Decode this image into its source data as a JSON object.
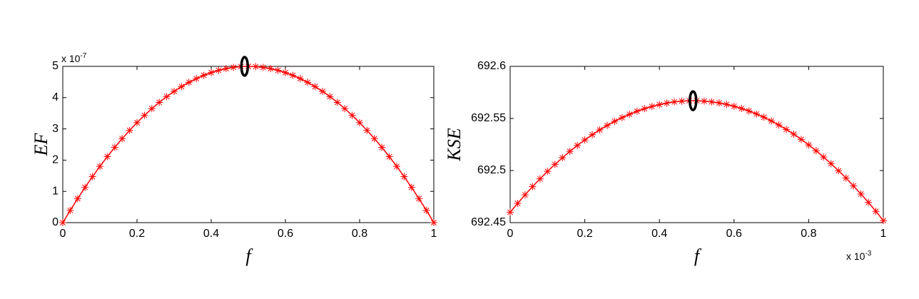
{
  "chart_data": [
    {
      "type": "line",
      "marker": "*",
      "color": "#ff0000",
      "xlabel": "f",
      "ylabel": "EF",
      "y_multiplier": {
        "base": "x 10",
        "exponent": "-7"
      },
      "xlim": [
        0,
        1
      ],
      "ylim": [
        0,
        5
      ],
      "xticks": [
        0,
        0.2,
        0.4,
        0.6,
        0.8,
        1
      ],
      "yticks": [
        0,
        1,
        2,
        3,
        4,
        5
      ],
      "x": [
        0,
        0.02,
        0.04,
        0.06,
        0.08,
        0.1,
        0.12,
        0.14,
        0.16,
        0.18,
        0.2,
        0.22,
        0.24,
        0.26,
        0.28,
        0.3,
        0.32,
        0.34,
        0.36,
        0.38,
        0.4,
        0.42,
        0.44,
        0.46,
        0.48,
        0.5,
        0.52,
        0.54,
        0.56,
        0.58,
        0.6,
        0.62,
        0.64,
        0.66,
        0.68,
        0.7,
        0.72,
        0.74,
        0.76,
        0.78,
        0.8,
        0.82,
        0.84,
        0.86,
        0.88,
        0.9,
        0.92,
        0.94,
        0.96,
        0.98,
        1
      ],
      "series": [
        {
          "name": "EF",
          "color": "#ff0000",
          "values": [
            0,
            0.392,
            0.768,
            1.128,
            1.472,
            1.8,
            2.112,
            2.408,
            2.688,
            2.952,
            3.2,
            3.432,
            3.648,
            3.848,
            4.032,
            4.2,
            4.352,
            4.488,
            4.608,
            4.712,
            4.8,
            4.872,
            4.928,
            4.968,
            4.992,
            5,
            4.992,
            4.968,
            4.928,
            4.872,
            4.8,
            4.712,
            4.608,
            4.488,
            4.352,
            4.2,
            4.032,
            3.848,
            3.648,
            3.432,
            3.2,
            2.952,
            2.688,
            2.408,
            2.112,
            1.8,
            1.472,
            1.128,
            0.768,
            0.392,
            0
          ]
        }
      ],
      "highlight": {
        "x": 0.49,
        "y": 5
      }
    },
    {
      "type": "line",
      "marker": "*",
      "color": "#ff0000",
      "xlabel": "f",
      "ylabel": "KSE",
      "x_multiplier": {
        "base": "x 10",
        "exponent": "-3"
      },
      "xlim": [
        0,
        1
      ],
      "ylim": [
        692.45,
        692.6
      ],
      "xticks": [
        0,
        0.2,
        0.4,
        0.6,
        0.8,
        1
      ],
      "yticks": [
        692.45,
        692.5,
        692.55,
        692.6
      ],
      "x": [
        0,
        0.02,
        0.04,
        0.06,
        0.08,
        0.1,
        0.12,
        0.14,
        0.16,
        0.18,
        0.2,
        0.22,
        0.24,
        0.26,
        0.28,
        0.3,
        0.32,
        0.34,
        0.36,
        0.38,
        0.4,
        0.42,
        0.44,
        0.46,
        0.48,
        0.5,
        0.52,
        0.54,
        0.56,
        0.58,
        0.6,
        0.62,
        0.64,
        0.66,
        0.68,
        0.7,
        0.72,
        0.74,
        0.76,
        0.78,
        0.8,
        0.82,
        0.84,
        0.86,
        0.88,
        0.9,
        0.92,
        0.94,
        0.96,
        0.98,
        1
      ],
      "series": [
        {
          "name": "KSE",
          "color": "#ff0000",
          "values": [
            692.46,
            692.4685,
            692.4767,
            692.4846,
            692.492,
            692.4992,
            692.5059,
            692.5123,
            692.5184,
            692.5241,
            692.5294,
            692.5344,
            692.539,
            692.5433,
            692.5473,
            692.5508,
            692.554,
            692.5569,
            692.5594,
            692.5615,
            692.5633,
            692.5648,
            692.5659,
            692.5666,
            692.567,
            692.567,
            692.5666,
            692.5659,
            692.5649,
            692.5635,
            692.5617,
            692.5596,
            692.5572,
            692.5543,
            692.5512,
            692.5476,
            692.5437,
            692.5395,
            692.5349,
            692.5299,
            692.5246,
            692.519,
            692.5129,
            692.5066,
            692.4998,
            692.4928,
            692.4853,
            692.4775,
            692.4694,
            692.4609,
            692.452
          ]
        }
      ],
      "highlight": {
        "x": 0.49,
        "y": 692.567
      }
    }
  ]
}
